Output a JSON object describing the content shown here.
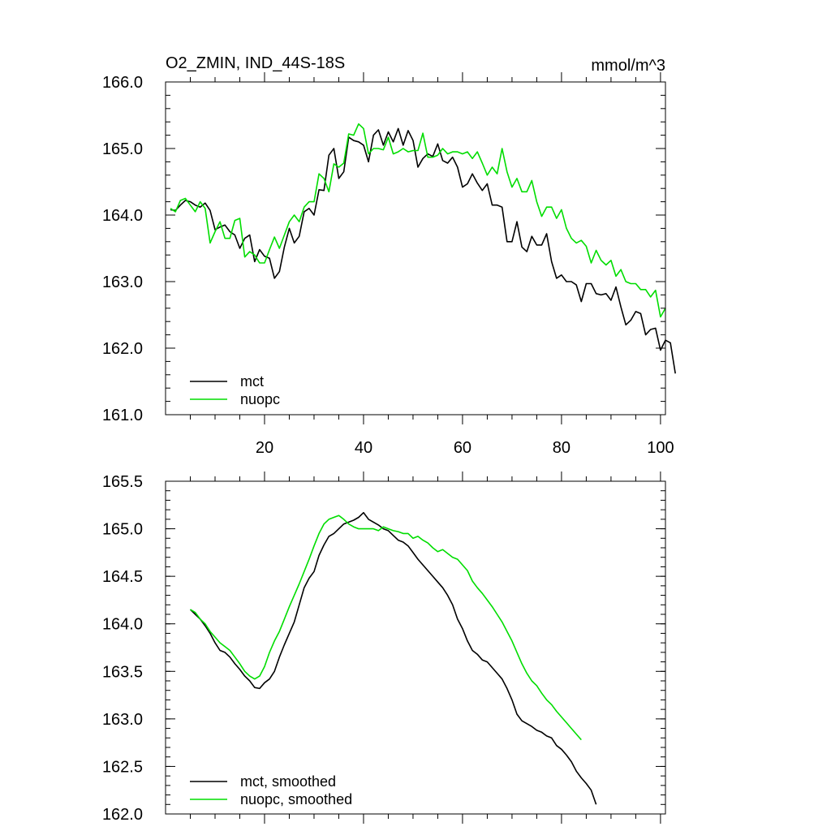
{
  "chart_data": [
    {
      "type": "line",
      "title": "O2_ZMIN, IND_44S-18S",
      "units": "mmol/m^3",
      "xlabel": "",
      "ylabel": "",
      "xlim": [
        0,
        101
      ],
      "ylim": [
        161.0,
        166.0
      ],
      "xticks": [
        20,
        40,
        60,
        80,
        100
      ],
      "xtick_labels": [
        "20",
        "40",
        "60",
        "80",
        "100"
      ],
      "yticks": [
        161.0,
        162.0,
        163.0,
        164.0,
        165.0,
        166.0
      ],
      "ytick_labels": [
        "161.0",
        "162.0",
        "163.0",
        "164.0",
        "165.0",
        "166.0"
      ],
      "legend_position": "bottom-left",
      "series": [
        {
          "name": "mct",
          "color": "#000000",
          "x_start": 1,
          "values": [
            164.08,
            164.07,
            164.15,
            164.22,
            164.2,
            164.15,
            164.12,
            164.18,
            164.07,
            163.78,
            163.82,
            163.85,
            163.75,
            163.7,
            163.5,
            163.65,
            163.7,
            163.3,
            163.48,
            163.38,
            163.35,
            163.05,
            163.15,
            163.52,
            163.8,
            163.58,
            163.68,
            164.05,
            164.1,
            164.0,
            164.38,
            164.37,
            164.9,
            165.0,
            164.55,
            164.65,
            165.17,
            165.12,
            165.1,
            165.05,
            164.8,
            165.2,
            165.28,
            165.05,
            165.25,
            165.1,
            165.3,
            165.05,
            165.27,
            165.12,
            164.72,
            164.85,
            164.92,
            164.88,
            165.07,
            164.82,
            164.78,
            164.87,
            164.72,
            164.42,
            164.47,
            164.62,
            164.48,
            164.37,
            164.47,
            164.15,
            164.15,
            164.12,
            163.6,
            163.6,
            163.9,
            163.52,
            163.45,
            163.68,
            163.55,
            163.55,
            163.72,
            163.3,
            163.05,
            163.1,
            163.0,
            163.0,
            162.95,
            162.7,
            162.97,
            162.97,
            162.82,
            162.8,
            162.82,
            162.72,
            162.92,
            162.62,
            162.35,
            162.42,
            162.55,
            162.52,
            162.2,
            162.28,
            162.3,
            161.97,
            162.12,
            162.08,
            161.62
          ]
        },
        {
          "name": "nuopc",
          "color": "#00dd00",
          "x_start": 1,
          "values": [
            164.1,
            164.05,
            164.22,
            164.25,
            164.15,
            164.05,
            164.2,
            164.1,
            163.58,
            163.75,
            163.9,
            163.65,
            163.65,
            163.92,
            163.95,
            163.37,
            163.45,
            163.4,
            163.28,
            163.28,
            163.48,
            163.67,
            163.5,
            163.7,
            163.9,
            164.0,
            163.9,
            164.12,
            164.2,
            164.2,
            164.62,
            164.55,
            164.35,
            164.77,
            164.72,
            164.78,
            165.22,
            165.2,
            165.37,
            165.3,
            164.92,
            165.0,
            165.0,
            164.98,
            165.17,
            164.92,
            164.95,
            165.0,
            164.95,
            164.97,
            164.97,
            165.23,
            164.87,
            164.87,
            164.9,
            165.0,
            164.92,
            164.95,
            164.95,
            164.92,
            164.95,
            164.85,
            164.95,
            164.78,
            164.6,
            164.72,
            164.62,
            165.0,
            164.65,
            164.42,
            164.55,
            164.35,
            164.35,
            164.52,
            164.2,
            163.98,
            164.12,
            164.12,
            163.95,
            164.08,
            163.8,
            163.65,
            163.58,
            163.62,
            163.53,
            163.28,
            163.47,
            163.32,
            163.25,
            163.32,
            163.08,
            163.18,
            163.0,
            162.97,
            162.97,
            162.88,
            162.88,
            162.77,
            162.87,
            162.47,
            162.6
          ]
        }
      ]
    },
    {
      "type": "line",
      "title": "",
      "xlabel": "",
      "ylabel": "",
      "xlim": [
        0,
        101
      ],
      "ylim": [
        162.0,
        165.5
      ],
      "xticks": [
        20,
        40,
        60,
        80,
        100
      ],
      "xtick_labels": [],
      "yticks": [
        162.0,
        162.5,
        163.0,
        163.5,
        164.0,
        164.5,
        165.0,
        165.5
      ],
      "ytick_labels": [
        "162.0",
        "162.5",
        "163.0",
        "163.5",
        "164.0",
        "164.5",
        "165.0",
        "165.5"
      ],
      "legend_position": "bottom-left",
      "series": [
        {
          "name": "mct, smoothed",
          "color": "#000000",
          "x_start": 5,
          "values": [
            164.15,
            164.1,
            164.05,
            163.98,
            163.9,
            163.8,
            163.72,
            163.7,
            163.65,
            163.58,
            163.52,
            163.45,
            163.4,
            163.33,
            163.32,
            163.38,
            163.42,
            163.5,
            163.65,
            163.78,
            163.9,
            164.02,
            164.2,
            164.38,
            164.48,
            164.55,
            164.72,
            164.83,
            164.92,
            164.95,
            165.0,
            165.05,
            165.07,
            165.09,
            165.12,
            165.17,
            165.1,
            165.07,
            165.04,
            165.0,
            164.98,
            164.93,
            164.88,
            164.86,
            164.82,
            164.75,
            164.68,
            164.62,
            164.56,
            164.5,
            164.44,
            164.38,
            164.3,
            164.2,
            164.05,
            163.95,
            163.82,
            163.72,
            163.68,
            163.62,
            163.6,
            163.54,
            163.48,
            163.42,
            163.32,
            163.2,
            163.05,
            162.98,
            162.95,
            162.92,
            162.88,
            162.86,
            162.82,
            162.8,
            162.72,
            162.68,
            162.62,
            162.55,
            162.45,
            162.38,
            162.32,
            162.25,
            162.1
          ]
        },
        {
          "name": "nuopc, smoothed",
          "color": "#00dd00",
          "x_start": 5,
          "values": [
            164.15,
            164.12,
            164.05,
            164.0,
            163.92,
            163.86,
            163.8,
            163.76,
            163.72,
            163.65,
            163.58,
            163.5,
            163.45,
            163.42,
            163.45,
            163.55,
            163.7,
            163.82,
            163.92,
            164.05,
            164.18,
            164.3,
            164.42,
            164.55,
            164.68,
            164.82,
            164.95,
            165.05,
            165.1,
            165.12,
            165.14,
            165.1,
            165.05,
            165.02,
            165.0,
            165.0,
            165.0,
            165.0,
            164.98,
            165.02,
            165.0,
            164.98,
            164.97,
            164.95,
            164.95,
            164.9,
            164.92,
            164.88,
            164.85,
            164.8,
            164.76,
            164.78,
            164.74,
            164.7,
            164.68,
            164.62,
            164.56,
            164.45,
            164.38,
            164.32,
            164.25,
            164.18,
            164.1,
            164.02,
            163.92,
            163.82,
            163.7,
            163.58,
            163.48,
            163.4,
            163.35,
            163.27,
            163.2,
            163.15,
            163.08,
            163.02,
            162.96,
            162.9,
            162.84,
            162.78
          ]
        }
      ]
    }
  ]
}
